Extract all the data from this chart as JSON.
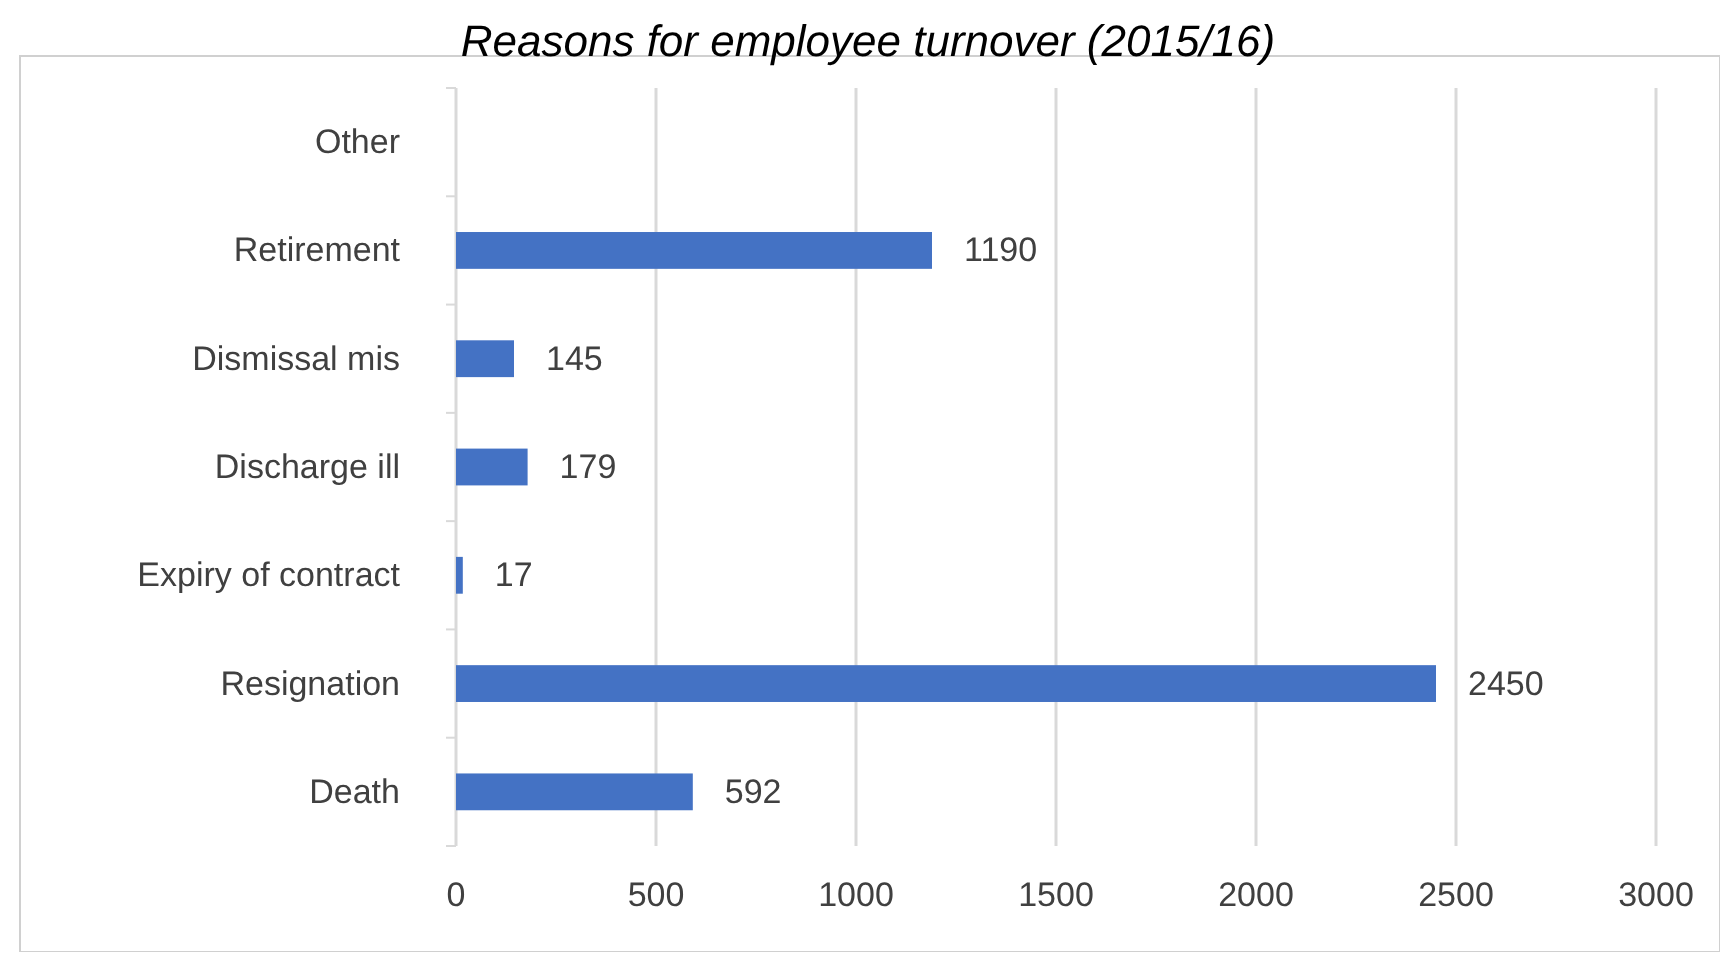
{
  "chart_data": {
    "type": "bar",
    "orientation": "horizontal",
    "title": "Reasons for employee turnover (2015/16)",
    "categories": [
      "Other",
      "Retirement",
      "Dismissal mis",
      "Discharge ill",
      "Expiry of contract",
      "Resignation",
      "Death"
    ],
    "values": [
      null,
      1190,
      145,
      179,
      17,
      2450,
      592
    ],
    "color": "#4472c4",
    "xlim": [
      0,
      3000
    ],
    "xticks": [
      0,
      500,
      1000,
      1500,
      2000,
      2500,
      3000
    ],
    "grid": "x",
    "data_labels": true
  }
}
